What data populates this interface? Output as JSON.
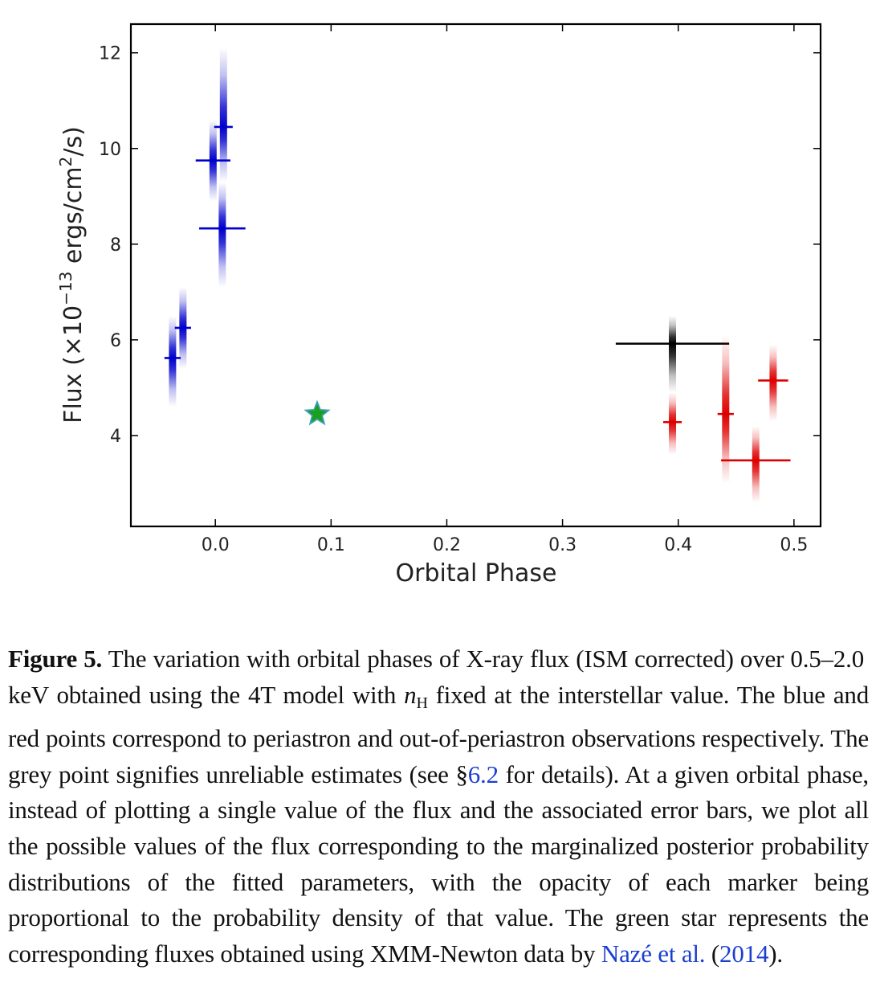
{
  "chart_data": {
    "type": "scatter",
    "xlabel": "Orbital Phase",
    "ylabel_parts": {
      "pre": "Flux (×10",
      "exp": "−13",
      "mid": " ergs/cm",
      "exp2": "2",
      "post": "/s)"
    },
    "xlim": [
      -0.073,
      0.523
    ],
    "ylim": [
      2.1,
      12.6
    ],
    "xticks": [
      0.0,
      0.1,
      0.2,
      0.3,
      0.4,
      0.5
    ],
    "xtick_labels": [
      "0.0",
      "0.1",
      "0.2",
      "0.3",
      "0.4",
      "0.5"
    ],
    "yticks": [
      4,
      6,
      8,
      10,
      12
    ],
    "ytick_labels": [
      "4",
      "6",
      "8",
      "10",
      "12"
    ],
    "colors": {
      "periastron": "#0000cc",
      "out_of_periastron": "#dd0000",
      "unreliable": "#000000",
      "star": "#1aa01a",
      "star_edge": "#3a9fb5"
    },
    "series": [
      {
        "name": "periastron",
        "color": "#0000cc",
        "points": [
          {
            "x": -0.037,
            "y": 5.62,
            "xerr": 0.007,
            "ylo": 4.6,
            "yhi": 6.5
          },
          {
            "x": -0.028,
            "y": 6.25,
            "xerr": 0.007,
            "ylo": 5.4,
            "yhi": 7.1
          },
          {
            "x": -0.002,
            "y": 9.75,
            "xerr": 0.015,
            "ylo": 8.9,
            "yhi": 10.6
          },
          {
            "x": 0.007,
            "y": 10.45,
            "xerr": 0.008,
            "ylo": 9.3,
            "yhi": 12.1
          },
          {
            "x": 0.006,
            "y": 8.33,
            "xerr": 0.02,
            "ylo": 7.1,
            "yhi": 9.3
          }
        ]
      },
      {
        "name": "unreliable",
        "color": "#000000",
        "points": [
          {
            "x": 0.395,
            "y": 5.92,
            "xerr": 0.049,
            "ylo": 4.9,
            "yhi": 6.5
          }
        ]
      },
      {
        "name": "out_of_periastron",
        "color": "#dd0000",
        "points": [
          {
            "x": 0.395,
            "y": 4.28,
            "xerr": 0.008,
            "ylo": 3.6,
            "yhi": 4.9
          },
          {
            "x": 0.441,
            "y": 4.45,
            "xerr": 0.007,
            "ylo": 3.0,
            "yhi": 6.1
          },
          {
            "x": 0.467,
            "y": 3.48,
            "xerr": 0.03,
            "ylo": 2.6,
            "yhi": 4.2
          },
          {
            "x": 0.482,
            "y": 5.15,
            "xerr": 0.013,
            "ylo": 4.3,
            "yhi": 5.9
          }
        ]
      }
    ],
    "star": {
      "x": 0.088,
      "y": 4.45,
      "label": "XMM-Newton (Nazé et al. 2014)"
    }
  },
  "caption": {
    "label": "Figure 5.",
    "text1": " The variation with orbital phases of X-ray flux (ISM corrected) over 0.5–2.0 keV obtained using the 4T model with ",
    "nH": "n",
    "nH_sub": "H",
    "text2": " fixed at the interstellar value. The blue and red points correspond to periastron and out-of-periastron observations respectively. The grey point signifies unreliable estimates (see §",
    "section_link": "6.2",
    "text3": " for details). At a given orbital phase, instead of plotting a single value of the flux and the associated error bars, we plot all the possible values of the flux corresponding to the marginalized posterior probability distributions of the fitted parameters, with the opacity of each marker being proportional to the probability density of that value. The green star represents the corresponding fluxes obtained using XMM-Newton data by ",
    "ref_link": "Nazé et al.",
    "ref_open": " (",
    "ref_year": "2014",
    "ref_close": ")."
  }
}
